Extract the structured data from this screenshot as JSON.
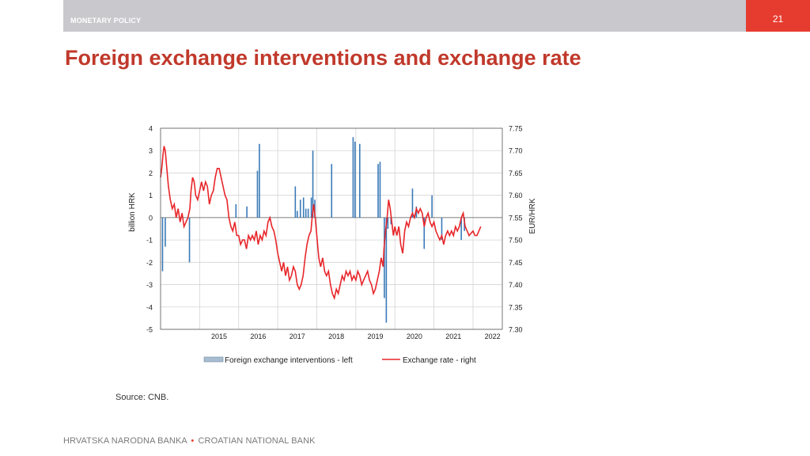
{
  "header": {
    "section": "MONETARY POLICY",
    "page_number": "21",
    "bar_color": "#c8c8cd",
    "accent": "#e63c2f"
  },
  "title": "Foreign exchange interventions and exchange rate",
  "source": "Source: CNB.",
  "footer": {
    "left": "HRVATSKA NARODNA BANKA",
    "separator": "•",
    "right": "CROATIAN NATIONAL BANK"
  },
  "chart_data": {
    "type": "bar",
    "xlabel": "",
    "ylabel_left": "billion HRK",
    "ylabel_right": "EUR/HRK",
    "ylim_left": [
      -5,
      4
    ],
    "ylim_right": [
      7.3,
      7.75
    ],
    "yticks_left": [
      "4",
      "3",
      "2",
      "1",
      "0",
      "-1",
      "-2",
      "-3",
      "-4",
      "-5"
    ],
    "yticks_right": [
      "7.75",
      "7.70",
      "7.65",
      "7.60",
      "7.55",
      "7.50",
      "7.45",
      "7.40",
      "7.35",
      "7.30"
    ],
    "x_range": [
      2014.0,
      2022.75
    ],
    "x_ticks": [
      "2015",
      "2016",
      "2017",
      "2018",
      "2019",
      "2020",
      "2021",
      "2022"
    ],
    "grid": true,
    "legend_position": "bottom",
    "series": [
      {
        "name": "Foreign exchange interventions - left",
        "kind": "bar",
        "axis": "left",
        "color": "#3a7ab8",
        "points": [
          [
            2014.05,
            -2.4
          ],
          [
            2014.12,
            -1.3
          ],
          [
            2014.74,
            -2.0
          ],
          [
            2015.93,
            0.6
          ],
          [
            2016.21,
            0.5
          ],
          [
            2016.48,
            2.1
          ],
          [
            2016.53,
            3.3
          ],
          [
            2017.45,
            1.4
          ],
          [
            2017.5,
            0.3
          ],
          [
            2017.58,
            0.8
          ],
          [
            2017.66,
            0.9
          ],
          [
            2017.72,
            0.4
          ],
          [
            2017.78,
            0.4
          ],
          [
            2017.86,
            0.9
          ],
          [
            2017.9,
            3.0
          ],
          [
            2017.95,
            0.8
          ],
          [
            2018.38,
            2.4
          ],
          [
            2018.93,
            3.6
          ],
          [
            2018.98,
            3.4
          ],
          [
            2019.1,
            3.3
          ],
          [
            2019.57,
            2.4
          ],
          [
            2019.62,
            2.5
          ],
          [
            2019.73,
            -3.6
          ],
          [
            2019.78,
            -4.7
          ],
          [
            2019.82,
            -0.5
          ],
          [
            2019.9,
            -0.3
          ],
          [
            2020.45,
            1.3
          ],
          [
            2020.55,
            0.5
          ],
          [
            2020.75,
            -1.4
          ],
          [
            2020.95,
            1.0
          ],
          [
            2021.2,
            -1.0
          ],
          [
            2021.7,
            -1.0
          ],
          [
            2021.78,
            -0.6
          ]
        ]
      },
      {
        "name": "Exchange rate - right",
        "kind": "line",
        "axis": "right",
        "color": "#e8262a",
        "points": [
          [
            2014.0,
            7.64
          ],
          [
            2014.03,
            7.66
          ],
          [
            2014.06,
            7.69
          ],
          [
            2014.09,
            7.71
          ],
          [
            2014.12,
            7.7
          ],
          [
            2014.16,
            7.66
          ],
          [
            2014.2,
            7.62
          ],
          [
            2014.25,
            7.59
          ],
          [
            2014.3,
            7.57
          ],
          [
            2014.35,
            7.58
          ],
          [
            2014.4,
            7.55
          ],
          [
            2014.45,
            7.57
          ],
          [
            2014.5,
            7.54
          ],
          [
            2014.55,
            7.56
          ],
          [
            2014.6,
            7.53
          ],
          [
            2014.65,
            7.54
          ],
          [
            2014.7,
            7.55
          ],
          [
            2014.75,
            7.57
          ],
          [
            2014.78,
            7.61
          ],
          [
            2014.82,
            7.64
          ],
          [
            2014.86,
            7.63
          ],
          [
            2014.9,
            7.6
          ],
          [
            2014.95,
            7.59
          ],
          [
            2015.0,
            7.61
          ],
          [
            2015.05,
            7.63
          ],
          [
            2015.1,
            7.61
          ],
          [
            2015.15,
            7.63
          ],
          [
            2015.2,
            7.62
          ],
          [
            2015.25,
            7.58
          ],
          [
            2015.3,
            7.6
          ],
          [
            2015.35,
            7.61
          ],
          [
            2015.4,
            7.64
          ],
          [
            2015.45,
            7.66
          ],
          [
            2015.5,
            7.66
          ],
          [
            2015.55,
            7.64
          ],
          [
            2015.6,
            7.62
          ],
          [
            2015.65,
            7.6
          ],
          [
            2015.7,
            7.59
          ],
          [
            2015.75,
            7.55
          ],
          [
            2015.8,
            7.53
          ],
          [
            2015.85,
            7.52
          ],
          [
            2015.9,
            7.54
          ],
          [
            2015.95,
            7.51
          ],
          [
            2016.0,
            7.51
          ],
          [
            2016.05,
            7.49
          ],
          [
            2016.1,
            7.5
          ],
          [
            2016.15,
            7.5
          ],
          [
            2016.2,
            7.48
          ],
          [
            2016.25,
            7.51
          ],
          [
            2016.3,
            7.5
          ],
          [
            2016.35,
            7.51
          ],
          [
            2016.4,
            7.5
          ],
          [
            2016.45,
            7.52
          ],
          [
            2016.5,
            7.49
          ],
          [
            2016.55,
            7.51
          ],
          [
            2016.6,
            7.5
          ],
          [
            2016.65,
            7.52
          ],
          [
            2016.7,
            7.51
          ],
          [
            2016.75,
            7.54
          ],
          [
            2016.8,
            7.55
          ],
          [
            2016.85,
            7.53
          ],
          [
            2016.9,
            7.52
          ],
          [
            2016.95,
            7.5
          ],
          [
            2017.0,
            7.47
          ],
          [
            2017.05,
            7.45
          ],
          [
            2017.1,
            7.43
          ],
          [
            2017.15,
            7.45
          ],
          [
            2017.2,
            7.42
          ],
          [
            2017.25,
            7.44
          ],
          [
            2017.3,
            7.41
          ],
          [
            2017.35,
            7.42
          ],
          [
            2017.4,
            7.44
          ],
          [
            2017.45,
            7.43
          ],
          [
            2017.5,
            7.4
          ],
          [
            2017.55,
            7.39
          ],
          [
            2017.6,
            7.4
          ],
          [
            2017.65,
            7.42
          ],
          [
            2017.7,
            7.46
          ],
          [
            2017.75,
            7.49
          ],
          [
            2017.8,
            7.51
          ],
          [
            2017.85,
            7.52
          ],
          [
            2017.88,
            7.55
          ],
          [
            2017.92,
            7.58
          ],
          [
            2017.96,
            7.55
          ],
          [
            2018.0,
            7.51
          ],
          [
            2018.05,
            7.46
          ],
          [
            2018.1,
            7.44
          ],
          [
            2018.15,
            7.46
          ],
          [
            2018.2,
            7.43
          ],
          [
            2018.25,
            7.42
          ],
          [
            2018.3,
            7.43
          ],
          [
            2018.35,
            7.4
          ],
          [
            2018.4,
            7.38
          ],
          [
            2018.45,
            7.37
          ],
          [
            2018.5,
            7.39
          ],
          [
            2018.55,
            7.38
          ],
          [
            2018.6,
            7.4
          ],
          [
            2018.65,
            7.42
          ],
          [
            2018.7,
            7.41
          ],
          [
            2018.75,
            7.43
          ],
          [
            2018.8,
            7.42
          ],
          [
            2018.85,
            7.43
          ],
          [
            2018.9,
            7.41
          ],
          [
            2018.95,
            7.42
          ],
          [
            2019.0,
            7.41
          ],
          [
            2019.05,
            7.43
          ],
          [
            2019.1,
            7.42
          ],
          [
            2019.15,
            7.4
          ],
          [
            2019.2,
            7.41
          ],
          [
            2019.25,
            7.42
          ],
          [
            2019.3,
            7.43
          ],
          [
            2019.35,
            7.41
          ],
          [
            2019.4,
            7.4
          ],
          [
            2019.45,
            7.38
          ],
          [
            2019.5,
            7.39
          ],
          [
            2019.55,
            7.41
          ],
          [
            2019.6,
            7.43
          ],
          [
            2019.65,
            7.46
          ],
          [
            2019.7,
            7.44
          ],
          [
            2019.72,
            7.48
          ],
          [
            2019.76,
            7.52
          ],
          [
            2019.8,
            7.55
          ],
          [
            2019.84,
            7.59
          ],
          [
            2019.88,
            7.57
          ],
          [
            2019.92,
            7.54
          ],
          [
            2019.96,
            7.51
          ],
          [
            2020.0,
            7.53
          ],
          [
            2020.05,
            7.51
          ],
          [
            2020.1,
            7.53
          ],
          [
            2020.15,
            7.49
          ],
          [
            2020.2,
            7.47
          ],
          [
            2020.25,
            7.52
          ],
          [
            2020.3,
            7.54
          ],
          [
            2020.35,
            7.53
          ],
          [
            2020.4,
            7.55
          ],
          [
            2020.45,
            7.56
          ],
          [
            2020.5,
            7.55
          ],
          [
            2020.55,
            7.57
          ],
          [
            2020.6,
            7.56
          ],
          [
            2020.65,
            7.57
          ],
          [
            2020.7,
            7.56
          ],
          [
            2020.75,
            7.53
          ],
          [
            2020.8,
            7.55
          ],
          [
            2020.85,
            7.56
          ],
          [
            2020.9,
            7.54
          ],
          [
            2020.95,
            7.53
          ],
          [
            2021.0,
            7.54
          ],
          [
            2021.05,
            7.52
          ],
          [
            2021.1,
            7.51
          ],
          [
            2021.15,
            7.5
          ],
          [
            2021.2,
            7.51
          ],
          [
            2021.25,
            7.49
          ],
          [
            2021.3,
            7.51
          ],
          [
            2021.35,
            7.52
          ],
          [
            2021.4,
            7.51
          ],
          [
            2021.45,
            7.52
          ],
          [
            2021.5,
            7.51
          ],
          [
            2021.55,
            7.53
          ],
          [
            2021.6,
            7.52
          ],
          [
            2021.65,
            7.53
          ],
          [
            2021.7,
            7.55
          ],
          [
            2021.75,
            7.56
          ],
          [
            2021.8,
            7.53
          ],
          [
            2021.85,
            7.52
          ],
          [
            2021.9,
            7.51
          ],
          [
            2022.0,
            7.52
          ],
          [
            2022.05,
            7.51
          ],
          [
            2022.1,
            7.51
          ],
          [
            2022.15,
            7.52
          ],
          [
            2022.2,
            7.53
          ]
        ]
      }
    ]
  }
}
